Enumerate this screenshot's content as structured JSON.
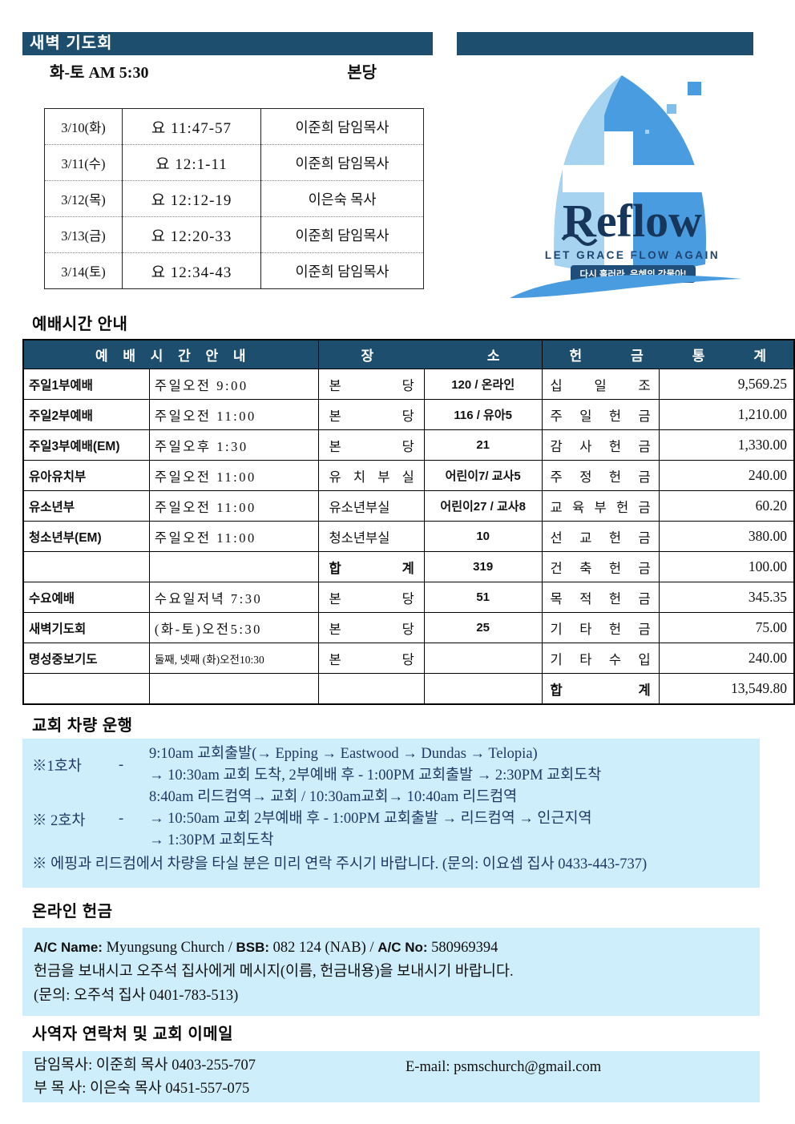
{
  "header": {
    "title": "새벽 기도회",
    "time": "화-토 AM 5:30",
    "place": "본당"
  },
  "dawn_table": {
    "rows": [
      [
        "3/10(화)",
        "요 11:47-57",
        "이준희 담임목사"
      ],
      [
        "3/11(수)",
        "요 12:1-11",
        "이준희 담임목사"
      ],
      [
        "3/12(목)",
        "요 12:12-19",
        "이은숙 목사"
      ],
      [
        "3/13(금)",
        "요 12:20-33",
        "이준희 담임목사"
      ],
      [
        "3/14(토)",
        "요 12:34-43",
        "이준희 담임목사"
      ]
    ]
  },
  "logo": {
    "name": "Reflow",
    "tagline": "LET GRACE FLOW AGAIN",
    "badge": "다시 흘러라, 은혜의 강물아!",
    "colors": {
      "light": "#a6d3f0",
      "mid": "#4a9ce0",
      "navy": "#16365c",
      "badge_bg": "#1e4e79"
    }
  },
  "services": {
    "title": "예배시간 안내",
    "headers": [
      "예 배 시 간 안 내",
      "장 소",
      "헌 금 통 계"
    ],
    "rows": [
      [
        "주일1부예배",
        "주일오전 9:00",
        "본 당",
        "120 / 온라인",
        "십 일 조",
        "9,569.25"
      ],
      [
        "주일2부예배",
        "주일오전 11:00",
        "본 당",
        "116 / 유아5",
        "주 일 헌 금",
        "1,210.00"
      ],
      [
        "주일3부예배(EM)",
        "주일오후 1:30",
        "본 당",
        "21",
        "감 사 헌 금",
        "1,330.00"
      ],
      [
        "유아유치부",
        "주일오전 11:00",
        "유 치 부 실",
        "어린이7/ 교사5",
        "주 정 헌 금",
        "240.00"
      ],
      [
        "유소년부",
        "주일오전 11:00",
        "유소년부실",
        "어린이27 / 교사8",
        "교 육 부 헌 금",
        "60.20"
      ],
      [
        "청소년부(EM)",
        "주일오전 11:00",
        "청소년부실",
        "10",
        "선 교 헌 금",
        "380.00"
      ],
      [
        "",
        "",
        "합 계",
        "319",
        "건 축 헌 금",
        "100.00"
      ],
      [
        "수요예배",
        "수요일저녁 7:30",
        "본 당",
        "51",
        "목 적 헌 금",
        "345.35"
      ],
      [
        "새벽기도회",
        "(화-토)오전5:30",
        "본 당",
        "25",
        "기 타 헌 금",
        "75.00"
      ],
      [
        "명성중보기도",
        "둘째, 넷째 (화)오전10:30",
        "본 당",
        "",
        "기 타 수 입",
        "240.00"
      ],
      [
        "",
        "",
        "",
        "",
        "합 계",
        "13,549.80"
      ]
    ]
  },
  "bus": {
    "title": "교회 차량 운행",
    "routes": [
      {
        "label": "※1호차",
        "dash": "-",
        "lines": [
          "9:10am 교회출발(→ Epping → Eastwood → Dundas → Telopia)",
          "→ 10:30am 교회 도착, 2부예배 후 - 1:00PM 교회출발 → 2:30PM 교회도착"
        ]
      },
      {
        "label": "※ 2호차",
        "dash": "-",
        "lines": [
          "8:40am 리드컴역→ 교회 / 10:30am교회→ 10:40am 리드컴역",
          "→ 10:50am 교회 2부예배 후 - 1:00PM 교회출발 → 리드컴역 → 인근지역",
          "→ 1:30PM 교회도착"
        ]
      }
    ],
    "note": "※ 에핑과 리드컴에서 차량을 타실 분은 미리 연락 주시기 바랍니다. (문의: 이요셉 집사 0433-443-737)"
  },
  "online": {
    "title": "온라인 헌금",
    "account_line": [
      {
        "text": "A/C Name:",
        "bold": true
      },
      {
        "text": " Myungsung Church / ",
        "bold": false
      },
      {
        "text": "BSB:",
        "bold": true
      },
      {
        "text": " 082 124 (NAB) / ",
        "bold": false
      },
      {
        "text": "A/C No:",
        "bold": true
      },
      {
        "text": " 580969394",
        "bold": false
      }
    ],
    "lines": [
      "헌금을 보내시고 오주석 집사에게 메시지(이름, 헌금내용)을 보내시기 바랍니다.",
      "(문의: 오주석 집사 0401-783-513)"
    ]
  },
  "contacts": {
    "title": "사역자 연락처 및 교회 이메일",
    "left_lines": [
      "담임목사: 이준희 목사 0403-255-707",
      "부 목 사: 이은숙 목사 0451-557-075"
    ],
    "email": "E-mail: psmschurch@gmail.com"
  },
  "colors": {
    "navy": "#1d4e6e",
    "panel": "#cfeefb"
  }
}
